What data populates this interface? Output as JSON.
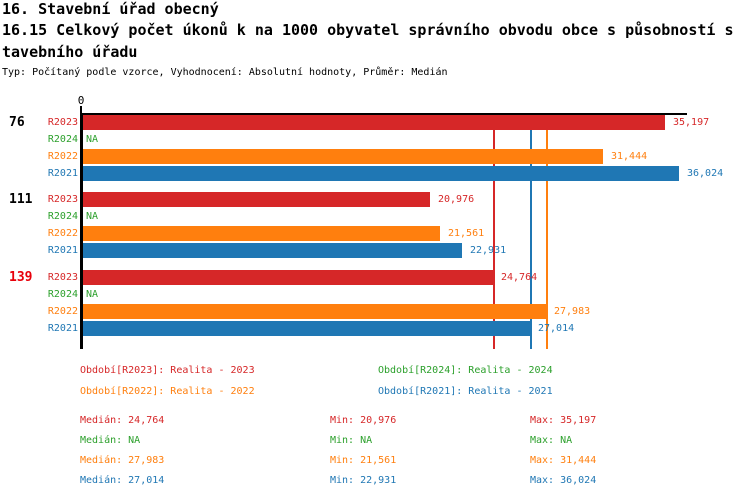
{
  "title": {
    "line1": "16. Stavební úřad obecný",
    "line2": "16.15 Celkový počet úkonů k na 1000 obyvatel správního obvodu obce s působností s",
    "line3": "tavebního úřadu",
    "subtitle": "Typ: Počítaný podle vzorce, Vyhodnocení: Absolutní hodnoty, Průměr: Medián"
  },
  "colors": {
    "R2023": "#d62728",
    "R2024": "#2ca02c",
    "R2022": "#ff7f0e",
    "R2021": "#1f77b4",
    "axis": "#000000",
    "group_label": "#000000",
    "highlight_group": "#e8000b"
  },
  "chart_data": {
    "type": "bar",
    "orientation": "horizontal",
    "x_axis_zero_label": "0",
    "xlim": [
      0,
      36400
    ],
    "grid": false,
    "series_order": [
      "R2023",
      "R2024",
      "R2022",
      "R2021"
    ],
    "groups": [
      {
        "label": "76",
        "highlight": false,
        "bars": [
          {
            "series": "R2023",
            "value": 35197,
            "label": "35,197"
          },
          {
            "series": "R2024",
            "value": null,
            "label": "NA"
          },
          {
            "series": "R2022",
            "value": 31444,
            "label": "31,444"
          },
          {
            "series": "R2021",
            "value": 36024,
            "label": "36,024"
          }
        ]
      },
      {
        "label": "111",
        "highlight": false,
        "bars": [
          {
            "series": "R2023",
            "value": 20976,
            "label": "20,976"
          },
          {
            "series": "R2024",
            "value": null,
            "label": "NA"
          },
          {
            "series": "R2022",
            "value": 21561,
            "label": "21,561"
          },
          {
            "series": "R2021",
            "value": 22931,
            "label": "22,931"
          }
        ]
      },
      {
        "label": "139",
        "highlight": true,
        "bars": [
          {
            "series": "R2023",
            "value": 24764,
            "label": "24,764"
          },
          {
            "series": "R2024",
            "value": null,
            "label": "NA"
          },
          {
            "series": "R2022",
            "value": 27983,
            "label": "27,983"
          },
          {
            "series": "R2021",
            "value": 27014,
            "label": "27,014"
          }
        ]
      }
    ],
    "median_lines": [
      {
        "series": "R2023",
        "value": 24764
      },
      {
        "series": "R2021",
        "value": 27014
      },
      {
        "series": "R2022",
        "value": 27983
      }
    ]
  },
  "legend": [
    {
      "series": "R2023",
      "label": "Období[R2023]: Realita - 2023"
    },
    {
      "series": "R2024",
      "label": "Období[R2024]: Realita - 2024"
    },
    {
      "series": "R2022",
      "label": "Období[R2022]: Realita - 2022"
    },
    {
      "series": "R2021",
      "label": "Období[R2021]: Realita - 2021"
    }
  ],
  "stat_labels": {
    "median": "Medián",
    "min": "Min",
    "max": "Max"
  },
  "stats": [
    {
      "series": "R2023",
      "median": "24,764",
      "min": "20,976",
      "max": "35,197"
    },
    {
      "series": "R2024",
      "median": "NA",
      "min": "NA",
      "max": "NA"
    },
    {
      "series": "R2022",
      "median": "27,983",
      "min": "21,561",
      "max": "31,444"
    },
    {
      "series": "R2021",
      "median": "27,014",
      "min": "22,931",
      "max": "36,024"
    }
  ]
}
